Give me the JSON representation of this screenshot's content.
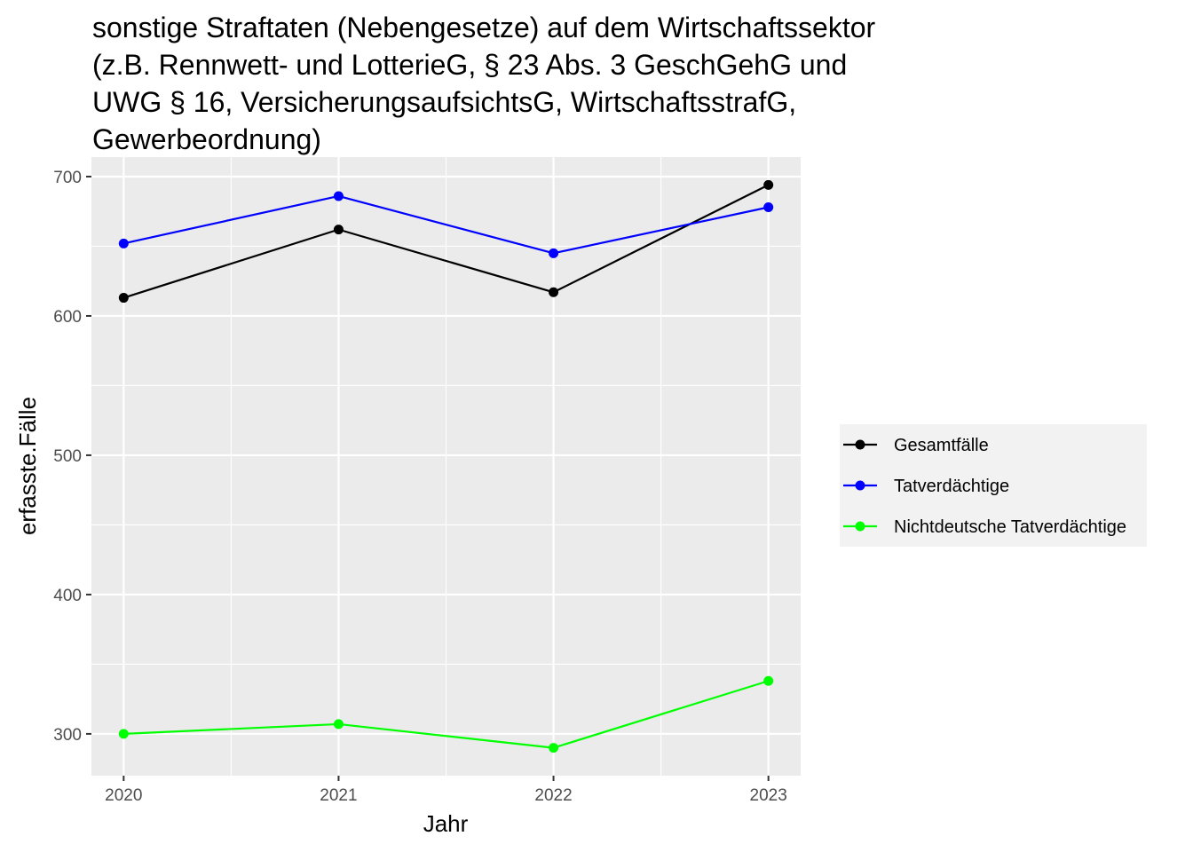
{
  "chart_data": {
    "type": "line",
    "title_lines": [
      "sonstige Straftaten (Nebengesetze) auf dem Wirtschaftssektor",
      "(z.B. Rennwett- und LotterieG, § 23 Abs. 3 GeschGehG und",
      "UWG § 16, VersicherungsaufsichtsG, WirtschaftsstrafG,",
      "Gewerbeordnung)"
    ],
    "xlabel": "Jahr",
    "ylabel": "erfasste.Fälle",
    "x": [
      2020,
      2021,
      2022,
      2023
    ],
    "x_ticks": [
      "2020",
      "2021",
      "2022",
      "2023"
    ],
    "y_ticks": [
      300,
      400,
      500,
      600,
      700
    ],
    "xlim": [
      2019.85,
      2023.15
    ],
    "ylim": [
      270,
      714
    ],
    "grid": true,
    "legend_position": "right",
    "panel_background": "#ebebeb",
    "series": [
      {
        "name": "Gesamtfälle",
        "color": "#000000",
        "values": [
          613,
          662,
          617,
          694
        ]
      },
      {
        "name": "Tatverdächtige",
        "color": "#0000ff",
        "values": [
          652,
          686,
          645,
          678
        ]
      },
      {
        "name": "Nichtdeutsche Tatverdächtige",
        "color": "#00ff00",
        "values": [
          300,
          307,
          290,
          338
        ]
      }
    ]
  }
}
